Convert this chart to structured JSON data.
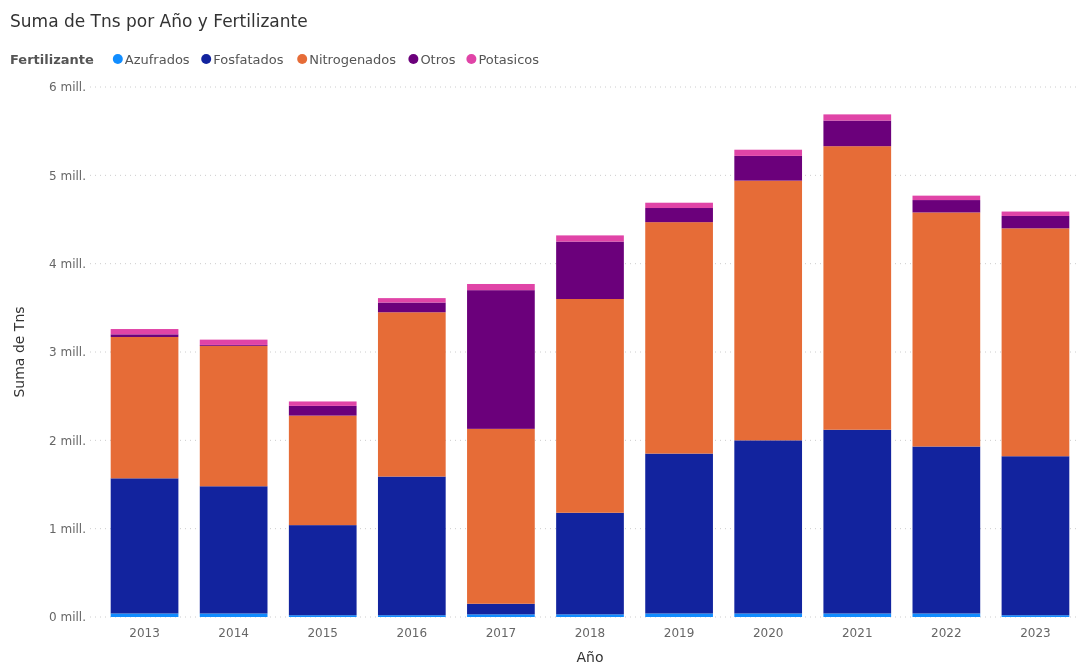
{
  "chart_data": {
    "type": "bar",
    "title": "Suma de Tns por Año y Fertilizante",
    "xlabel": "Año",
    "ylabel": "Suma de Tns",
    "legend_title": "Fertilizante",
    "legend": "top left",
    "grid": "y",
    "stacked": true,
    "categories": [
      "2013",
      "2014",
      "2015",
      "2016",
      "2017",
      "2018",
      "2019",
      "2020",
      "2021",
      "2022",
      "2023"
    ],
    "ylim": [
      0,
      6
    ],
    "yticks": [
      {
        "value": 0,
        "label": "0 mill."
      },
      {
        "value": 1,
        "label": "1 mill."
      },
      {
        "value": 2,
        "label": "2 mill."
      },
      {
        "value": 3,
        "label": "3 mill."
      },
      {
        "value": 4,
        "label": "4 mill."
      },
      {
        "value": 5,
        "label": "5 mill."
      },
      {
        "value": 6,
        "label": "6 mill."
      }
    ],
    "series": [
      {
        "name": "Azufrados",
        "color": "#118dff",
        "values": [
          0.04,
          0.04,
          0.02,
          0.02,
          0.03,
          0.03,
          0.04,
          0.04,
          0.04,
          0.04,
          0.02
        ]
      },
      {
        "name": "Fosfatados",
        "color": "#12239e",
        "values": [
          1.53,
          1.44,
          1.02,
          1.57,
          0.12,
          1.15,
          1.81,
          1.96,
          2.08,
          1.89,
          1.8
        ]
      },
      {
        "name": "Nitrogenados",
        "color": "#e66c37",
        "values": [
          1.6,
          1.59,
          1.24,
          1.86,
          1.98,
          2.42,
          2.62,
          2.94,
          3.21,
          2.65,
          2.58
        ]
      },
      {
        "name": "Otros",
        "color": "#6b007b",
        "values": [
          0.03,
          0.01,
          0.11,
          0.11,
          1.57,
          0.65,
          0.16,
          0.28,
          0.29,
          0.14,
          0.14
        ]
      },
      {
        "name": "Potasicos",
        "color": "#e044a7",
        "values": [
          0.06,
          0.06,
          0.05,
          0.05,
          0.07,
          0.07,
          0.06,
          0.07,
          0.07,
          0.05,
          0.05
        ]
      }
    ]
  }
}
